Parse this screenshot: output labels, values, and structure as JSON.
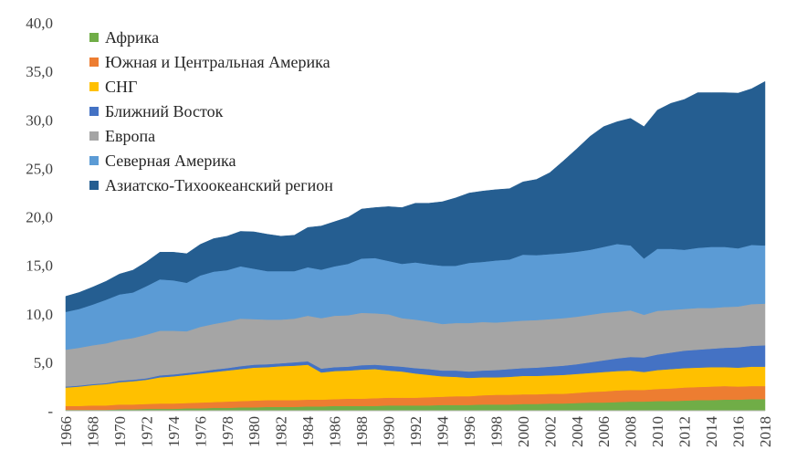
{
  "chart_data": {
    "type": "area",
    "stacked": true,
    "x": [
      1966,
      1967,
      1968,
      1969,
      1970,
      1971,
      1972,
      1973,
      1974,
      1975,
      1976,
      1977,
      1978,
      1979,
      1980,
      1981,
      1982,
      1983,
      1984,
      1985,
      1986,
      1987,
      1988,
      1989,
      1990,
      1991,
      1992,
      1993,
      1994,
      1995,
      1996,
      1997,
      1998,
      1999,
      2000,
      2001,
      2002,
      2003,
      2004,
      2005,
      2006,
      2007,
      2008,
      2009,
      2010,
      2011,
      2012,
      2013,
      2014,
      2015,
      2016,
      2017,
      2018
    ],
    "xticks": [
      "1966",
      "1968",
      "1970",
      "1972",
      "1974",
      "1976",
      "1978",
      "1980",
      "1982",
      "1984",
      "1986",
      "1988",
      "1990",
      "1992",
      "1994",
      "1996",
      "1998",
      "2000",
      "2002",
      "2004",
      "2006",
      "2008",
      "2010",
      "2012",
      "2014",
      "2016",
      "2018"
    ],
    "yticks": [
      "-",
      "5,0",
      "10,0",
      "15,0",
      "20,0",
      "25,0",
      "30,0",
      "35,0",
      "40,0"
    ],
    "ylim": [
      0,
      40
    ],
    "legend_position": "top-left",
    "series": [
      {
        "name": "Африка",
        "color": "#70ad47",
        "values": [
          0.1,
          0.1,
          0.1,
          0.1,
          0.15,
          0.15,
          0.2,
          0.2,
          0.2,
          0.25,
          0.25,
          0.3,
          0.3,
          0.35,
          0.35,
          0.4,
          0.4,
          0.4,
          0.45,
          0.45,
          0.5,
          0.5,
          0.5,
          0.5,
          0.55,
          0.55,
          0.55,
          0.55,
          0.6,
          0.6,
          0.6,
          0.65,
          0.65,
          0.65,
          0.7,
          0.7,
          0.75,
          0.75,
          0.8,
          0.85,
          0.85,
          0.9,
          0.95,
          0.95,
          1.0,
          1.0,
          1.05,
          1.1,
          1.1,
          1.15,
          1.15,
          1.2,
          1.2
        ]
      },
      {
        "name": "Южная и Центральная Америка",
        "color": "#ed7d31",
        "values": [
          0.4,
          0.4,
          0.45,
          0.45,
          0.5,
          0.5,
          0.5,
          0.55,
          0.55,
          0.55,
          0.6,
          0.6,
          0.65,
          0.65,
          0.7,
          0.7,
          0.7,
          0.7,
          0.7,
          0.7,
          0.7,
          0.75,
          0.75,
          0.8,
          0.8,
          0.8,
          0.8,
          0.85,
          0.85,
          0.9,
          0.9,
          0.95,
          1.0,
          1.0,
          1.0,
          1.0,
          1.0,
          1.0,
          1.05,
          1.1,
          1.15,
          1.2,
          1.2,
          1.2,
          1.25,
          1.3,
          1.35,
          1.35,
          1.4,
          1.4,
          1.35,
          1.35,
          1.35
        ]
      },
      {
        "name": "СНГ",
        "color": "#ffc000",
        "values": [
          1.9,
          2.0,
          2.1,
          2.2,
          2.3,
          2.4,
          2.5,
          2.7,
          2.8,
          2.9,
          3.0,
          3.1,
          3.2,
          3.3,
          3.4,
          3.4,
          3.5,
          3.55,
          3.6,
          2.8,
          2.9,
          2.9,
          3.0,
          3.0,
          2.8,
          2.7,
          2.5,
          2.3,
          2.1,
          2.0,
          1.9,
          1.85,
          1.8,
          1.85,
          1.9,
          1.9,
          1.9,
          1.95,
          1.95,
          1.95,
          2.0,
          2.0,
          2.0,
          1.85,
          1.95,
          2.0,
          2.0,
          2.0,
          2.0,
          1.95,
          1.95,
          2.0,
          2.0
        ]
      },
      {
        "name": "Ближний Восток",
        "color": "#4472c4",
        "values": [
          0.1,
          0.1,
          0.1,
          0.1,
          0.15,
          0.15,
          0.15,
          0.2,
          0.2,
          0.2,
          0.2,
          0.25,
          0.25,
          0.3,
          0.3,
          0.3,
          0.3,
          0.35,
          0.35,
          0.4,
          0.4,
          0.4,
          0.45,
          0.45,
          0.5,
          0.5,
          0.55,
          0.6,
          0.6,
          0.65,
          0.65,
          0.7,
          0.75,
          0.8,
          0.8,
          0.85,
          0.9,
          0.95,
          1.0,
          1.1,
          1.2,
          1.3,
          1.4,
          1.5,
          1.6,
          1.7,
          1.8,
          1.85,
          1.9,
          2.0,
          2.1,
          2.15,
          2.2
        ]
      },
      {
        "name": "Европа",
        "color": "#a5a5a5",
        "values": [
          3.8,
          3.9,
          4.0,
          4.1,
          4.2,
          4.3,
          4.5,
          4.6,
          4.5,
          4.3,
          4.6,
          4.7,
          4.8,
          4.9,
          4.7,
          4.6,
          4.5,
          4.5,
          4.7,
          5.2,
          5.3,
          5.3,
          5.4,
          5.3,
          5.3,
          5.0,
          5.0,
          4.9,
          4.8,
          4.9,
          5.0,
          5.0,
          4.9,
          4.9,
          4.9,
          4.9,
          4.9,
          4.9,
          4.9,
          4.9,
          4.9,
          4.8,
          4.8,
          4.4,
          4.5,
          4.4,
          4.3,
          4.3,
          4.2,
          4.2,
          4.2,
          4.3,
          4.3
        ]
      },
      {
        "name": "Северная Америка",
        "color": "#5b9bd5",
        "values": [
          3.9,
          4.0,
          4.2,
          4.5,
          4.7,
          4.7,
          5.0,
          5.3,
          5.2,
          5.0,
          5.3,
          5.4,
          5.3,
          5.4,
          5.2,
          5.0,
          5.0,
          4.9,
          5.0,
          5.0,
          5.1,
          5.3,
          5.6,
          5.7,
          5.5,
          5.6,
          5.9,
          5.9,
          6.0,
          5.9,
          6.2,
          6.2,
          6.4,
          6.4,
          6.8,
          6.7,
          6.7,
          6.7,
          6.7,
          6.7,
          6.8,
          7.0,
          6.7,
          5.8,
          6.4,
          6.3,
          6.1,
          6.2,
          6.3,
          6.2,
          6.0,
          6.1,
          6.0
        ]
      },
      {
        "name": "Азиатско-Тихоокеанский регион",
        "color": "#255e91",
        "values": [
          1.6,
          1.7,
          1.8,
          1.9,
          2.1,
          2.3,
          2.5,
          2.8,
          2.9,
          3.0,
          3.2,
          3.4,
          3.5,
          3.6,
          3.8,
          3.8,
          3.6,
          3.7,
          4.1,
          4.5,
          4.6,
          4.8,
          5.1,
          5.2,
          5.6,
          5.8,
          6.1,
          6.3,
          6.6,
          7.0,
          7.2,
          7.3,
          7.3,
          7.3,
          7.5,
          7.8,
          8.4,
          9.5,
          10.6,
          11.7,
          12.4,
          12.6,
          13.1,
          13.6,
          14.3,
          15.0,
          15.5,
          16.0,
          15.9,
          15.9,
          16.0,
          16.1,
          16.9
        ]
      }
    ]
  }
}
